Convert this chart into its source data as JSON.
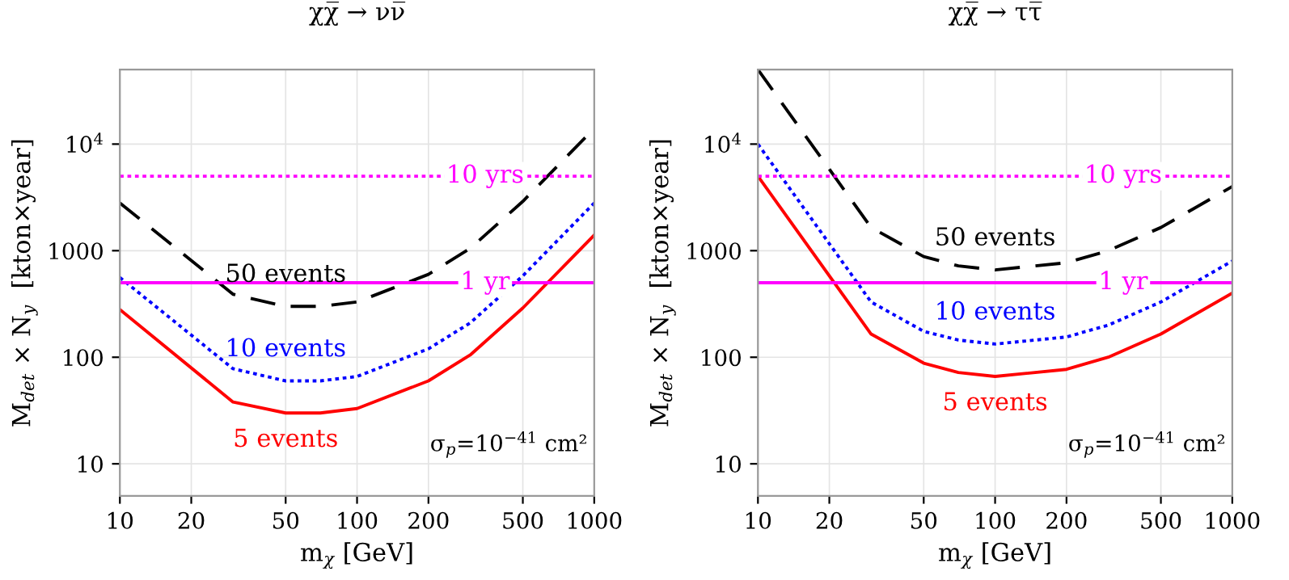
{
  "chart_data": [
    {
      "type": "line",
      "title": "χχ̅ → νν̅",
      "xlabel": "m$_{χ}$ [GeV]",
      "ylabel": "M$_{det}$ × N$_{y}$  [kton×year]",
      "log": "xy",
      "grid": true,
      "xlim": [
        10,
        1000
      ],
      "ylim": [
        5,
        50000
      ],
      "xticks": [
        10,
        20,
        50,
        100,
        200,
        500,
        1000
      ],
      "yticks": [
        10,
        100,
        1000,
        {
          "value": 10000,
          "label": "10$^{4}$"
        }
      ],
      "x": [
        10,
        30,
        50,
        70,
        100,
        200,
        300,
        500,
        1000
      ],
      "series": [
        {
          "name": "50 events",
          "color": "#000000",
          "line_style": "dashed",
          "values": [
            2800,
            390,
            300,
            300,
            330,
            600,
            1050,
            2900,
            14000
          ]
        },
        {
          "name": "10 events",
          "color": "#0000ff",
          "line_style": "dotted",
          "values": [
            560,
            78,
            60,
            60,
            66,
            120,
            210,
            580,
            2800
          ]
        },
        {
          "name": "5 events",
          "color": "#ff0000",
          "line_style": "solid",
          "values": [
            280,
            38,
            30,
            30,
            33,
            60,
            105,
            290,
            1400
          ]
        }
      ],
      "ref_lines": [
        {
          "axis": "y",
          "value": 5000,
          "label": "10 yrs",
          "color": "#ff00ff",
          "line_style": "dotted"
        },
        {
          "axis": "y",
          "value": 500,
          "label": "1 yr",
          "color": "#ff00ff",
          "line_style": "solid"
        }
      ],
      "annotations": [
        "σ$_{p}$=10$^{−41}$ cm²"
      ]
    },
    {
      "type": "line",
      "title": "χχ̅ → ττ̅",
      "xlabel": "m$_{χ}$ [GeV]",
      "ylabel": "M$_{det}$ × N$_{y}$  [kton×year]",
      "log": "xy",
      "grid": true,
      "xlim": [
        10,
        1000
      ],
      "ylim": [
        5,
        50000
      ],
      "xticks": [
        10,
        20,
        50,
        100,
        200,
        500,
        1000
      ],
      "yticks": [
        10,
        100,
        1000,
        {
          "value": 10000,
          "label": "10$^{4}$"
        }
      ],
      "x": [
        10,
        30,
        50,
        70,
        100,
        200,
        300,
        500,
        1000
      ],
      "series": [
        {
          "name": "50 events",
          "color": "#000000",
          "line_style": "dashed",
          "values": [
            50000,
            1650,
            880,
            720,
            660,
            770,
            1000,
            1650,
            4000
          ]
        },
        {
          "name": "10 events",
          "color": "#0000ff",
          "line_style": "dotted",
          "values": [
            10000,
            330,
            175,
            145,
            133,
            155,
            200,
            330,
            800
          ]
        },
        {
          "name": "5 events",
          "color": "#ff0000",
          "line_style": "solid",
          "values": [
            5000,
            165,
            88,
            72,
            66,
            77,
            100,
            165,
            400
          ]
        }
      ],
      "ref_lines": [
        {
          "axis": "y",
          "value": 5000,
          "label": "10 yrs",
          "color": "#ff00ff",
          "line_style": "dotted"
        },
        {
          "axis": "y",
          "value": 500,
          "label": "1 yr",
          "color": "#ff00ff",
          "line_style": "solid"
        }
      ],
      "annotations": [
        "σ$_{p}$=10$^{−41}$ cm²"
      ]
    }
  ]
}
